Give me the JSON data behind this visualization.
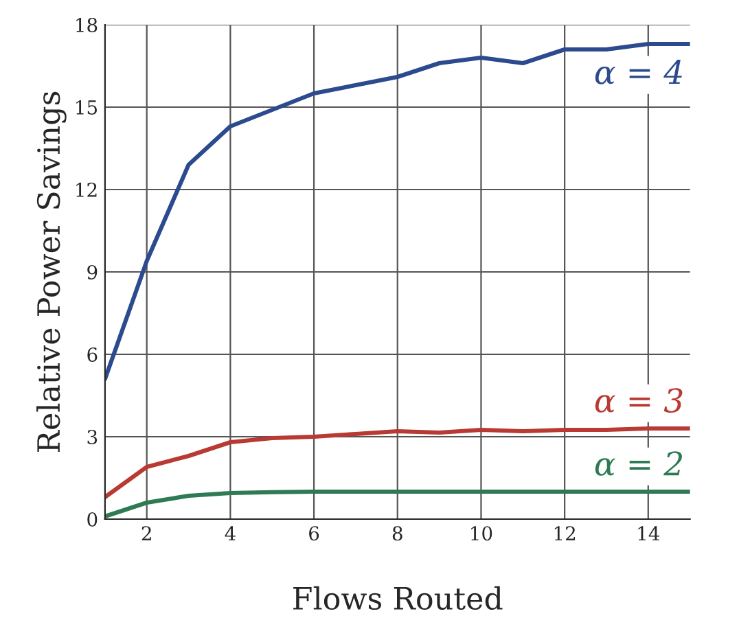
{
  "chart_data": {
    "type": "line",
    "xlabel": "Flows Routed",
    "ylabel": "Relative Power Savings",
    "x": [
      1,
      2,
      3,
      4,
      5,
      6,
      7,
      8,
      9,
      10,
      11,
      12,
      13,
      14,
      15
    ],
    "series": [
      {
        "name": "α = 4",
        "color": "#2c4a8e",
        "values": [
          5.1,
          9.4,
          12.9,
          14.3,
          14.9,
          15.5,
          15.8,
          16.1,
          16.6,
          16.8,
          16.6,
          17.1,
          17.1,
          17.3,
          17.3
        ]
      },
      {
        "name": "α = 3",
        "color": "#b83a33",
        "values": [
          0.8,
          1.9,
          2.3,
          2.8,
          2.95,
          3.0,
          3.1,
          3.2,
          3.15,
          3.25,
          3.2,
          3.25,
          3.25,
          3.3,
          3.3
        ]
      },
      {
        "name": "α = 2",
        "color": "#2e7a55",
        "values": [
          0.1,
          0.6,
          0.85,
          0.95,
          0.98,
          1.0,
          1.0,
          1.0,
          1.0,
          1.0,
          1.0,
          1.0,
          1.0,
          1.0,
          1.0
        ]
      }
    ],
    "xlim": [
      1,
      15
    ],
    "xticks": [
      2,
      4,
      6,
      8,
      10,
      12,
      14
    ],
    "ylim": [
      0,
      18
    ],
    "yticks": [
      0,
      3,
      6,
      9,
      12,
      15,
      18
    ],
    "grid": true,
    "legend": false,
    "marker": "none",
    "line_style": "solid"
  }
}
